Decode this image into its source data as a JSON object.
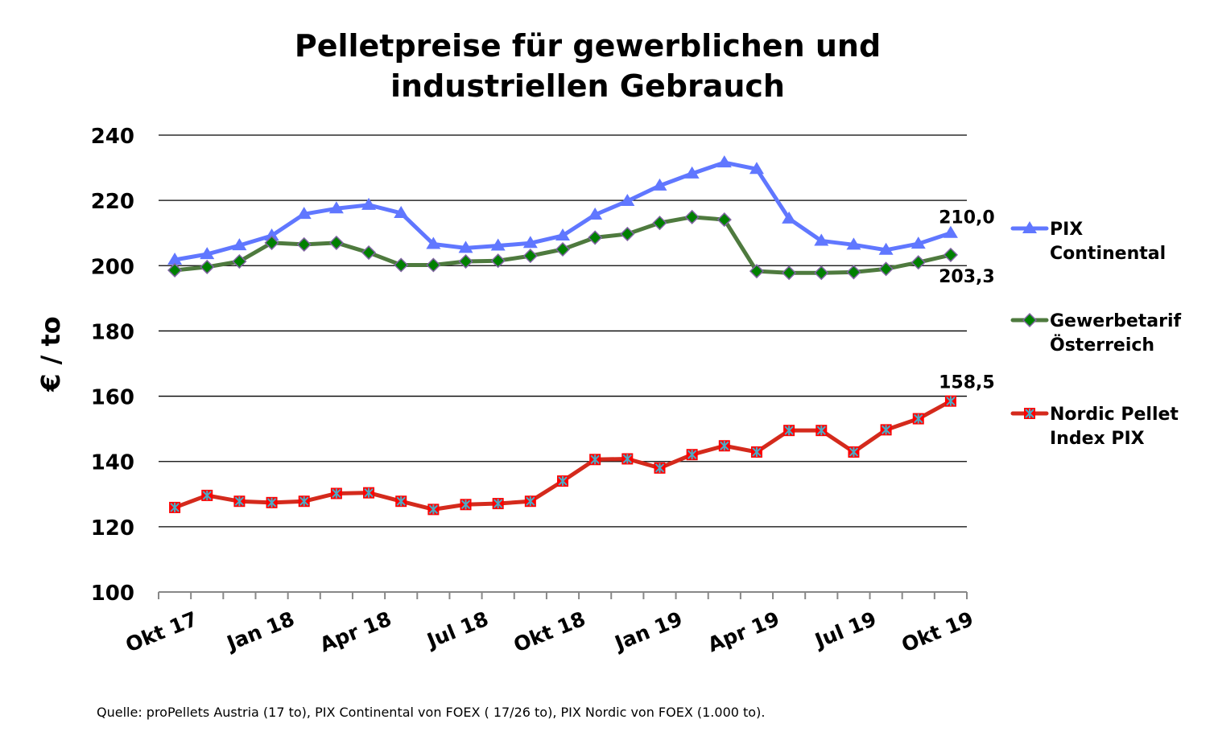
{
  "chart_data": {
    "type": "line",
    "title": [
      "Pelletpreise für gewerblichen und",
      "industriellen Gebrauch"
    ],
    "xlabel": "",
    "ylabel": "€ / to",
    "ylim": [
      100,
      240
    ],
    "yticks": [
      100,
      120,
      140,
      160,
      180,
      200,
      220,
      240
    ],
    "ytick_labels": [
      "100",
      "120",
      "140",
      "160",
      "180",
      "200",
      "220",
      "240"
    ],
    "grid": "horizontal",
    "legend_position": "right",
    "x": [
      "Okt 17",
      "Nov 17",
      "Dez 17",
      "Jan 18",
      "Feb 18",
      "Mär 18",
      "Apr 18",
      "Mai 18",
      "Jun 18",
      "Jul 18",
      "Aug 18",
      "Sep 18",
      "Okt 18",
      "Nov 18",
      "Dez 18",
      "Jan 19",
      "Feb 19",
      "Mär 19",
      "Apr 19",
      "Mai 19",
      "Jun 19",
      "Jul 19",
      "Aug 19",
      "Sep 19",
      "Okt 19"
    ],
    "xtick_labels": [
      {
        "index": 0,
        "label": "Okt 17"
      },
      {
        "index": 3,
        "label": "Jan 18"
      },
      {
        "index": 6,
        "label": "Apr 18"
      },
      {
        "index": 9,
        "label": "Jul 18"
      },
      {
        "index": 12,
        "label": "Okt 18"
      },
      {
        "index": 15,
        "label": "Jan 19"
      },
      {
        "index": 18,
        "label": "Apr 19"
      },
      {
        "index": 21,
        "label": "Jul 19"
      },
      {
        "index": 24,
        "label": "Okt 19"
      }
    ],
    "series": [
      {
        "name": "PIX Continental",
        "legend_lines": [
          "PIX",
          "Continental"
        ],
        "color": "#6077FF",
        "marker": "triangle",
        "marker_color": "#6077FF",
        "values": [
          201.8,
          203.5,
          206.2,
          209.2,
          215.8,
          217.5,
          218.6,
          216.1,
          206.6,
          205.4,
          206.1,
          206.9,
          209.2,
          215.6,
          219.8,
          224.5,
          228.2,
          231.6,
          229.6,
          214.4,
          207.6,
          206.4,
          204.8,
          206.7,
          210.0
        ],
        "end_label": "210,0"
      },
      {
        "name": "Gewerbetarif Österreich",
        "legend_lines": [
          "Gewerbetarif",
          "Österreich"
        ],
        "color": "#4E7A3E",
        "marker": "diamond",
        "marker_color": "#008000",
        "marker_edge": "#8064A2",
        "values": [
          198.6,
          199.6,
          201.3,
          207.0,
          206.5,
          207.0,
          204.0,
          200.2,
          200.2,
          201.3,
          201.5,
          203.0,
          205.0,
          208.6,
          209.7,
          213.1,
          214.9,
          214.1,
          198.3,
          197.8,
          197.8,
          198.0,
          199.0,
          201.0,
          203.3
        ],
        "end_label": "203,3"
      },
      {
        "name": "Nordic Pellet Index PIX",
        "legend_lines": [
          "Nordic Pellet",
          "Index PIX"
        ],
        "color": "#D42A1C",
        "marker": "asterisk-square",
        "marker_color": "#FF0000",
        "marker_edge": "#4BACC6",
        "values": [
          125.9,
          129.6,
          127.8,
          127.4,
          127.8,
          130.2,
          130.4,
          127.8,
          125.3,
          126.8,
          127.1,
          127.8,
          134.0,
          140.6,
          140.8,
          138.0,
          142.1,
          144.8,
          142.9,
          149.5,
          149.5,
          142.9,
          149.7,
          153.1,
          158.5
        ],
        "end_label": "158,5"
      }
    ]
  },
  "source": "Quelle: proPellets Austria (17 to), PIX Continental von FOEX ( 17/26 to), PIX Nordic von FOEX (1.000 to)."
}
